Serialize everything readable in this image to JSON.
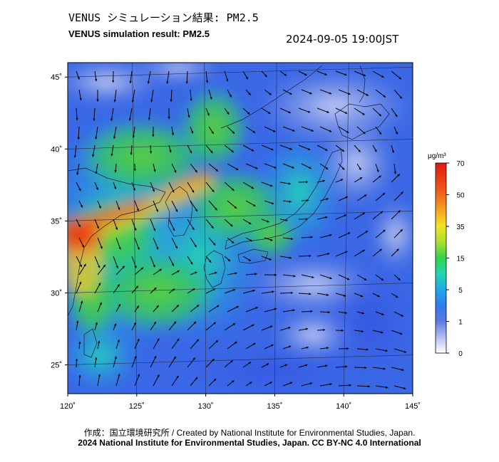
{
  "header": {
    "title_jp": "VENUS シミュレーション結果: PM2.5",
    "title_en": "VENUS simulation result: PM2.5",
    "timestamp": "2024-09-05 19:00JST"
  },
  "map": {
    "lon_range": [
      120,
      145
    ],
    "lat_range": [
      23,
      46
    ],
    "lon_ticks": [
      {
        "value": 120,
        "label": "120˚"
      },
      {
        "value": 125,
        "label": "125˚"
      },
      {
        "value": 130,
        "label": "130˚"
      },
      {
        "value": 135,
        "label": "135˚"
      },
      {
        "value": 140,
        "label": "140˚"
      },
      {
        "value": 145,
        "label": "145˚"
      }
    ],
    "lat_ticks": [
      {
        "value": 25,
        "label": "25˚"
      },
      {
        "value": 30,
        "label": "30˚"
      },
      {
        "value": 35,
        "label": "35˚"
      },
      {
        "value": 40,
        "label": "40˚"
      },
      {
        "value": 45,
        "label": "45˚"
      }
    ]
  },
  "colorbar": {
    "unit": "μg/m³",
    "ticks": [
      "70",
      "50",
      "35",
      "15",
      "5",
      "1",
      "0"
    ],
    "colors": [
      "#ffffff",
      "#8899e0",
      "#3b62e8",
      "#1fa6ee",
      "#22d6b0",
      "#33d24a",
      "#a8e030",
      "#f2e324",
      "#f7a51e",
      "#f25a17",
      "#e01a12"
    ]
  },
  "credits": {
    "line1": "作成：国立環境研究所 / Created by National Institute for Environmental Studies, Japan.",
    "line2": "2024 National Institute for Environmental Studies, Japan. CC BY-NC 4.0 International"
  }
}
